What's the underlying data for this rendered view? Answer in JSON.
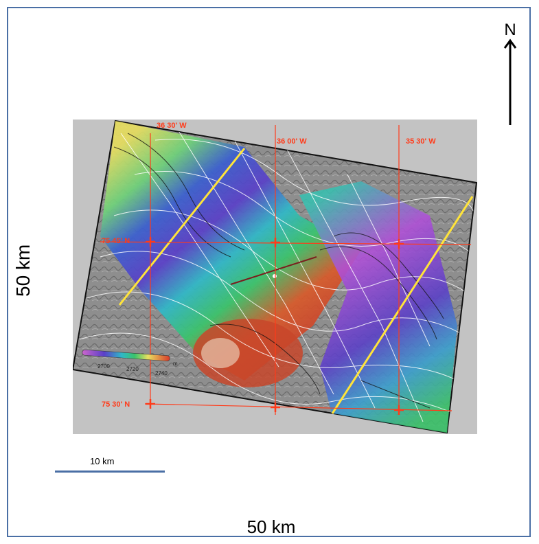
{
  "north": {
    "label": "N",
    "icon": "north-arrow-icon"
  },
  "dimensions": {
    "left": "50 km",
    "bottom": "50 km"
  },
  "scale_bar": {
    "label": "10 km",
    "color": "#4a6fa5"
  },
  "map": {
    "longitudes": [
      "36 30' W",
      "36 00' W",
      "35 30' W"
    ],
    "latitudes": [
      "75 45' N",
      "75 30' N"
    ],
    "colorbar": {
      "ticks": [
        "2700",
        "2720",
        "2740"
      ],
      "unit": "m"
    },
    "colors": {
      "grid": "#ff3b1a",
      "fault_lines": "#ffe43a",
      "frame": "#4a6fa5",
      "background": "#c3c3c3"
    }
  }
}
